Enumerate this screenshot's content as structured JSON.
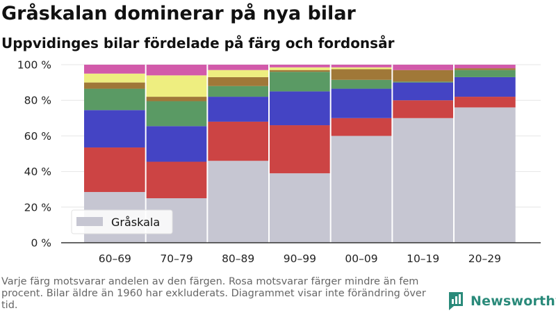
{
  "title": "Gråskalan dominerar på nya bilar",
  "subtitle": "Uppvidinges bilar fördelade på färg och fordonsår",
  "footnote": "Varje färg motsvarar andelen av den färgen. Rosa motsvarar färger mindre än fem procent. Bilar äldre än 1960 har exkluderats. Diagrammet visar inte förändring över tid.",
  "brand": {
    "name": "Newsworthy"
  },
  "chart_data": {
    "type": "bar",
    "stacked": true,
    "categories": [
      "60–69",
      "70–79",
      "80–89",
      "90–99",
      "00–09",
      "10–19",
      "20–29"
    ],
    "ylim": [
      0,
      100
    ],
    "yticks": [
      0,
      20,
      40,
      60,
      80,
      100
    ],
    "ytick_labels": [
      "0 %",
      "20 %",
      "40 %",
      "60 %",
      "80 %",
      "100 %"
    ],
    "grid": true,
    "legend": {
      "position": "bottom-left",
      "entries": [
        "Gråskala"
      ]
    },
    "series": [
      {
        "name": "Gråskala",
        "color": "#c6c6d2",
        "values": [
          28.5,
          25,
          46,
          39,
          60,
          70,
          76
        ]
      },
      {
        "color": "#cc4444",
        "values": [
          25,
          20.5,
          22,
          27,
          10,
          10,
          6
        ]
      },
      {
        "color": "#4444c4",
        "values": [
          21,
          20,
          14,
          19,
          16.5,
          10,
          11
        ]
      },
      {
        "color": "#5a9a64",
        "values": [
          12,
          14,
          6,
          11,
          5,
          0.5,
          4
        ]
      },
      {
        "color": "#a07838",
        "values": [
          3.5,
          2.5,
          5,
          1,
          6,
          6.5,
          1
        ]
      },
      {
        "color": "#eeee80",
        "values": [
          5,
          12,
          4,
          1.5,
          1,
          0,
          0
        ]
      },
      {
        "color": "#d25aaa",
        "values": [
          5,
          6,
          3,
          1.5,
          1.5,
          3,
          2
        ]
      }
    ]
  }
}
